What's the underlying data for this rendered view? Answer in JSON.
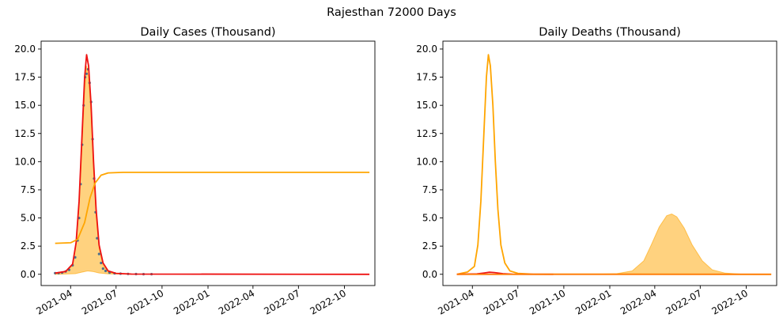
{
  "suptitle": "Rajesthan 72000 Days",
  "chart_data": [
    {
      "type": "line",
      "title": "Daily Cases (Thousand)",
      "xlabel": "",
      "ylabel": "",
      "grid": false,
      "ylim": [
        -1.0,
        20.7
      ],
      "xlim": [
        "2021-02-01",
        "2022-12-01"
      ],
      "y_ticks": [
        "0.0",
        "2.5",
        "5.0",
        "7.5",
        "10.0",
        "12.5",
        "15.0",
        "17.5",
        "20.0"
      ],
      "x_ticks": [
        "2021-04",
        "2021-07",
        "2021-10",
        "2022-01",
        "2022-04",
        "2022-07",
        "2022-10"
      ],
      "series": [
        {
          "kind": "scatter",
          "color": "#4a6f8f",
          "points": [
            [
              "2021-03-01",
              0.1
            ],
            [
              "2021-03-08",
              0.1
            ],
            [
              "2021-03-15",
              0.15
            ],
            [
              "2021-03-22",
              0.25
            ],
            [
              "2021-03-29",
              0.4
            ],
            [
              "2021-04-05",
              0.8
            ],
            [
              "2021-04-10",
              1.5
            ],
            [
              "2021-04-15",
              3.0
            ],
            [
              "2021-04-18",
              5.0
            ],
            [
              "2021-04-21",
              8.0
            ],
            [
              "2021-04-24",
              11.5
            ],
            [
              "2021-04-27",
              15.0
            ],
            [
              "2021-04-30",
              17.5
            ],
            [
              "2021-05-03",
              17.8
            ],
            [
              "2021-05-06",
              18.2
            ],
            [
              "2021-05-09",
              17.0
            ],
            [
              "2021-05-12",
              15.3
            ],
            [
              "2021-05-15",
              12.0
            ],
            [
              "2021-05-18",
              8.5
            ],
            [
              "2021-05-21",
              5.5
            ],
            [
              "2021-05-24",
              3.2
            ],
            [
              "2021-05-28",
              1.8
            ],
            [
              "2021-06-01",
              1.0
            ],
            [
              "2021-06-05",
              0.5
            ],
            [
              "2021-06-10",
              0.3
            ],
            [
              "2021-06-18",
              0.15
            ],
            [
              "2021-06-28",
              0.08
            ],
            [
              "2021-07-10",
              0.05
            ],
            [
              "2021-07-25",
              0.03
            ],
            [
              "2021-08-10",
              0.02
            ],
            [
              "2021-08-25",
              0.01
            ],
            [
              "2021-09-10",
              0.01
            ]
          ]
        },
        {
          "kind": "line",
          "color": "#ee1111",
          "points": [
            [
              "2021-03-01",
              0.1
            ],
            [
              "2021-03-22",
              0.25
            ],
            [
              "2021-04-05",
              0.9
            ],
            [
              "2021-04-12",
              2.8
            ],
            [
              "2021-04-18",
              6.5
            ],
            [
              "2021-04-24",
              12.5
            ],
            [
              "2021-04-29",
              17.5
            ],
            [
              "2021-05-03",
              19.5
            ],
            [
              "2021-05-07",
              18.5
            ],
            [
              "2021-05-12",
              15.0
            ],
            [
              "2021-05-17",
              10.0
            ],
            [
              "2021-05-22",
              5.8
            ],
            [
              "2021-05-28",
              2.6
            ],
            [
              "2021-06-05",
              1.0
            ],
            [
              "2021-06-15",
              0.3
            ],
            [
              "2021-07-01",
              0.08
            ],
            [
              "2021-08-01",
              0.02
            ],
            [
              "2022-11-20",
              0.0
            ]
          ]
        },
        {
          "kind": "line",
          "color": "#ffa500",
          "points": [
            [
              "2021-03-01",
              2.75
            ],
            [
              "2021-04-01",
              2.8
            ],
            [
              "2021-04-15",
              3.1
            ],
            [
              "2021-04-29",
              4.6
            ],
            [
              "2021-05-10",
              6.8
            ],
            [
              "2021-05-20",
              8.1
            ],
            [
              "2021-06-01",
              8.8
            ],
            [
              "2021-06-15",
              9.0
            ],
            [
              "2021-07-15",
              9.05
            ],
            [
              "2022-11-20",
              9.05
            ]
          ]
        },
        {
          "kind": "band",
          "color": "#ffa500",
          "upper": [
            [
              "2021-03-01",
              0.1
            ],
            [
              "2021-03-22",
              0.2
            ],
            [
              "2021-04-05",
              0.8
            ],
            [
              "2021-04-12",
              2.6
            ],
            [
              "2021-04-18",
              6.0
            ],
            [
              "2021-04-24",
              11.5
            ],
            [
              "2021-04-29",
              16.3
            ],
            [
              "2021-05-03",
              18.5
            ],
            [
              "2021-05-07",
              17.5
            ],
            [
              "2021-05-12",
              14.0
            ],
            [
              "2021-05-17",
              9.2
            ],
            [
              "2021-05-22",
              5.2
            ],
            [
              "2021-05-28",
              2.3
            ],
            [
              "2021-06-05",
              0.8
            ],
            [
              "2021-06-15",
              0.2
            ],
            [
              "2021-07-01",
              0.05
            ],
            [
              "2021-08-01",
              0.01
            ]
          ],
          "lower": [
            [
              "2021-03-01",
              0.0
            ],
            [
              "2021-04-10",
              0.05
            ],
            [
              "2021-04-25",
              0.2
            ],
            [
              "2021-05-05",
              0.3
            ],
            [
              "2021-05-15",
              0.25
            ],
            [
              "2021-05-28",
              0.12
            ],
            [
              "2021-06-15",
              0.03
            ],
            [
              "2021-08-01",
              0.0
            ]
          ]
        }
      ]
    },
    {
      "type": "line",
      "title": "Daily Deaths (Thousand)",
      "xlabel": "",
      "ylabel": "",
      "grid": false,
      "ylim": [
        -1.0,
        20.7
      ],
      "xlim": [
        "2021-02-01",
        "2022-12-01"
      ],
      "y_ticks": [
        "0.0",
        "2.5",
        "5.0",
        "7.5",
        "10.0",
        "12.5",
        "15.0",
        "17.5",
        "20.0"
      ],
      "x_ticks": [
        "2021-04",
        "2021-07",
        "2021-10",
        "2022-01",
        "2022-04",
        "2022-07",
        "2022-10"
      ],
      "series": [
        {
          "kind": "line",
          "color": "#ffa500",
          "points": [
            [
              "2021-03-01",
              0.0
            ],
            [
              "2021-03-22",
              0.2
            ],
            [
              "2021-04-05",
              0.7
            ],
            [
              "2021-04-12",
              2.6
            ],
            [
              "2021-04-18",
              6.5
            ],
            [
              "2021-04-24",
              12.5
            ],
            [
              "2021-04-29",
              17.5
            ],
            [
              "2021-05-03",
              19.5
            ],
            [
              "2021-05-07",
              18.5
            ],
            [
              "2021-05-12",
              15.0
            ],
            [
              "2021-05-17",
              10.0
            ],
            [
              "2021-05-22",
              5.8
            ],
            [
              "2021-05-28",
              2.6
            ],
            [
              "2021-06-05",
              1.0
            ],
            [
              "2021-06-15",
              0.3
            ],
            [
              "2021-07-01",
              0.08
            ],
            [
              "2021-08-01",
              0.01
            ],
            [
              "2022-11-20",
              0.0
            ]
          ]
        },
        {
          "kind": "band",
          "color": "#ffa500",
          "upper": [
            [
              "2021-12-01",
              0.0
            ],
            [
              "2022-01-15",
              0.05
            ],
            [
              "2022-02-15",
              0.3
            ],
            [
              "2022-03-10",
              1.2
            ],
            [
              "2022-03-25",
              2.6
            ],
            [
              "2022-04-10",
              4.2
            ],
            [
              "2022-04-25",
              5.2
            ],
            [
              "2022-05-05",
              5.35
            ],
            [
              "2022-05-15",
              5.1
            ],
            [
              "2022-05-30",
              4.1
            ],
            [
              "2022-06-15",
              2.6
            ],
            [
              "2022-07-05",
              1.2
            ],
            [
              "2022-07-25",
              0.4
            ],
            [
              "2022-08-20",
              0.1
            ],
            [
              "2022-09-20",
              0.02
            ],
            [
              "2022-11-20",
              0.0
            ]
          ],
          "lower": [
            [
              "2021-12-01",
              0.0
            ],
            [
              "2022-11-20",
              0.0
            ]
          ]
        },
        {
          "kind": "line",
          "color": "#ee1111",
          "points": [
            [
              "2021-03-01",
              0.0
            ],
            [
              "2021-04-10",
              0.03
            ],
            [
              "2021-04-25",
              0.12
            ],
            [
              "2021-05-05",
              0.18
            ],
            [
              "2021-05-15",
              0.15
            ],
            [
              "2021-06-01",
              0.05
            ],
            [
              "2021-06-20",
              0.01
            ],
            [
              "2021-09-10",
              0.0
            ]
          ]
        },
        {
          "kind": "line",
          "color": "#ff7f0e",
          "points": [
            [
              "2021-03-01",
              0.0
            ],
            [
              "2022-11-20",
              0.0
            ]
          ]
        }
      ]
    }
  ]
}
